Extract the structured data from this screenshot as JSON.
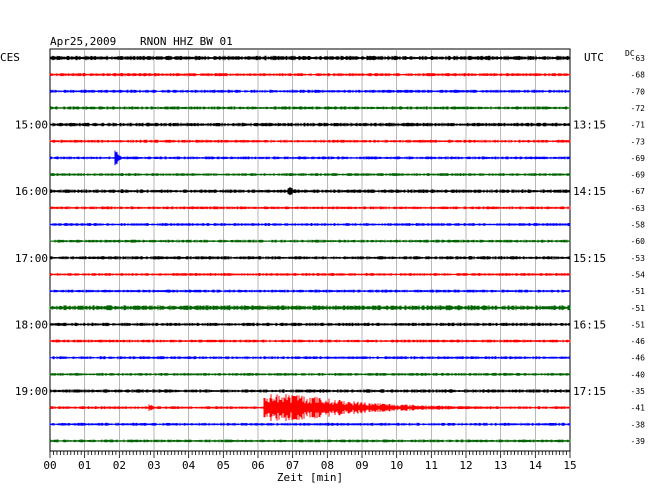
{
  "header": {
    "date": "Apr25,2009",
    "station": "RNON HHZ BW 01",
    "left_zone": "CES",
    "right_zone": "UTC",
    "dc_label": "DC"
  },
  "chart_data": {
    "type": "line",
    "title": "Apr25,2009   RNON HHZ BW 01",
    "xlabel": "Zeit [min]",
    "xlim": [
      0,
      15
    ],
    "x_ticks": [
      "00",
      "01",
      "02",
      "03",
      "04",
      "05",
      "06",
      "07",
      "08",
      "09",
      "10",
      "11",
      "12",
      "13",
      "14",
      "15"
    ],
    "trace_interval_min": 15,
    "trace_colors": [
      "#000000",
      "#ff0000",
      "#0000ff",
      "#006400"
    ],
    "left_hour_labels": [
      {
        "trace": 4,
        "label": "15:00"
      },
      {
        "trace": 8,
        "label": "16:00"
      },
      {
        "trace": 12,
        "label": "17:00"
      },
      {
        "trace": 16,
        "label": "18:00"
      },
      {
        "trace": 20,
        "label": "19:00"
      }
    ],
    "right_hour_labels": [
      {
        "trace": 4,
        "label": "13:15"
      },
      {
        "trace": 8,
        "label": "14:15"
      },
      {
        "trace": 12,
        "label": "15:15"
      },
      {
        "trace": 16,
        "label": "16:15"
      },
      {
        "trace": 20,
        "label": "17:15"
      }
    ],
    "dc_offsets": [
      -63,
      -68,
      -70,
      -72,
      -71,
      -73,
      -69,
      -69,
      -67,
      -63,
      -58,
      -60,
      -53,
      -54,
      -51,
      -51,
      -51,
      -46,
      -46,
      -40,
      -35,
      -41,
      -38,
      -39
    ],
    "events": [
      {
        "trace": 6,
        "minute": 1.9,
        "amplitude": 0.8,
        "duration_min": 0.2
      },
      {
        "trace": 8,
        "minute": 6.9,
        "amplitude": 0.35,
        "duration_min": 0.4
      },
      {
        "trace": 21,
        "minute": 2.9,
        "amplitude": 0.35,
        "duration_min": 0.2
      },
      {
        "trace": 21,
        "minute": 6.2,
        "amplitude": 1.1,
        "duration_min": 6.5
      }
    ],
    "noise_levels": [
      0.18,
      0.13,
      0.13,
      0.13,
      0.15,
      0.12,
      0.12,
      0.12,
      0.15,
      0.12,
      0.12,
      0.12,
      0.14,
      0.12,
      0.12,
      0.2,
      0.14,
      0.12,
      0.12,
      0.12,
      0.14,
      0.12,
      0.12,
      0.12
    ]
  }
}
